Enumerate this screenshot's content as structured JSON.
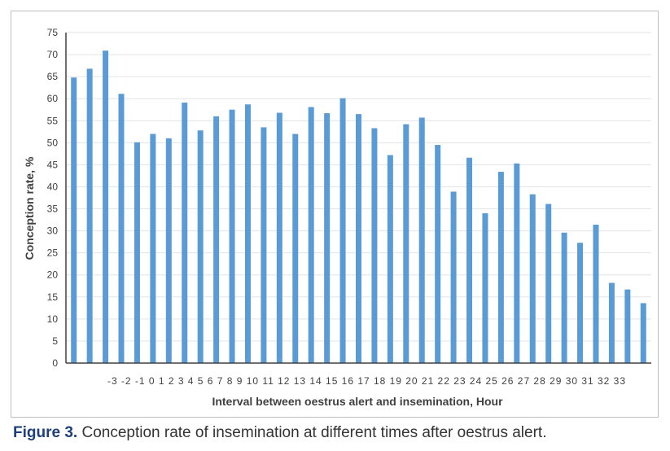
{
  "caption": {
    "label": "Figure 3.",
    "text": " Conception rate of insemination at different times after oestrus alert."
  },
  "chart_data": {
    "type": "bar",
    "title": "",
    "xlabel": "Interval between oestrus alert and insemination, Hour",
    "ylabel": "Conception rate, %",
    "ylim": [
      0,
      75
    ],
    "yticks": [
      0,
      5,
      10,
      15,
      20,
      25,
      30,
      35,
      40,
      45,
      50,
      55,
      60,
      65,
      70,
      75
    ],
    "grid": true,
    "bar_color": "#5b9bd5",
    "categories": [
      "",
      "",
      "",
      "",
      "",
      "",
      "",
      "",
      "",
      "",
      "",
      "",
      "",
      "",
      "",
      "",
      "",
      "",
      "",
      "",
      "",
      "",
      "",
      "",
      "",
      "",
      "",
      "",
      "",
      "",
      "",
      "",
      "",
      "",
      "",
      "",
      ""
    ],
    "values": [
      64.8,
      66.8,
      70.9,
      61.1,
      50.1,
      52.0,
      51.0,
      59.1,
      52.8,
      56.0,
      57.5,
      58.7,
      53.5,
      56.8,
      52.0,
      58.1,
      56.7,
      60.1,
      56.5,
      53.3,
      47.2,
      54.2,
      55.7,
      49.5,
      38.9,
      46.6,
      34.0,
      43.4,
      45.3,
      38.3,
      36.1,
      29.6,
      27.3,
      31.4,
      18.2,
      16.7,
      13.6
    ],
    "x_tick_text": "-3 -2 -1 0 1 2 3 4 5 6 7 8 9 10 11 12 13 14 15 16 17 18 19 20 21 22 23 24 25 26 27 28 29 30 31 32 33"
  }
}
